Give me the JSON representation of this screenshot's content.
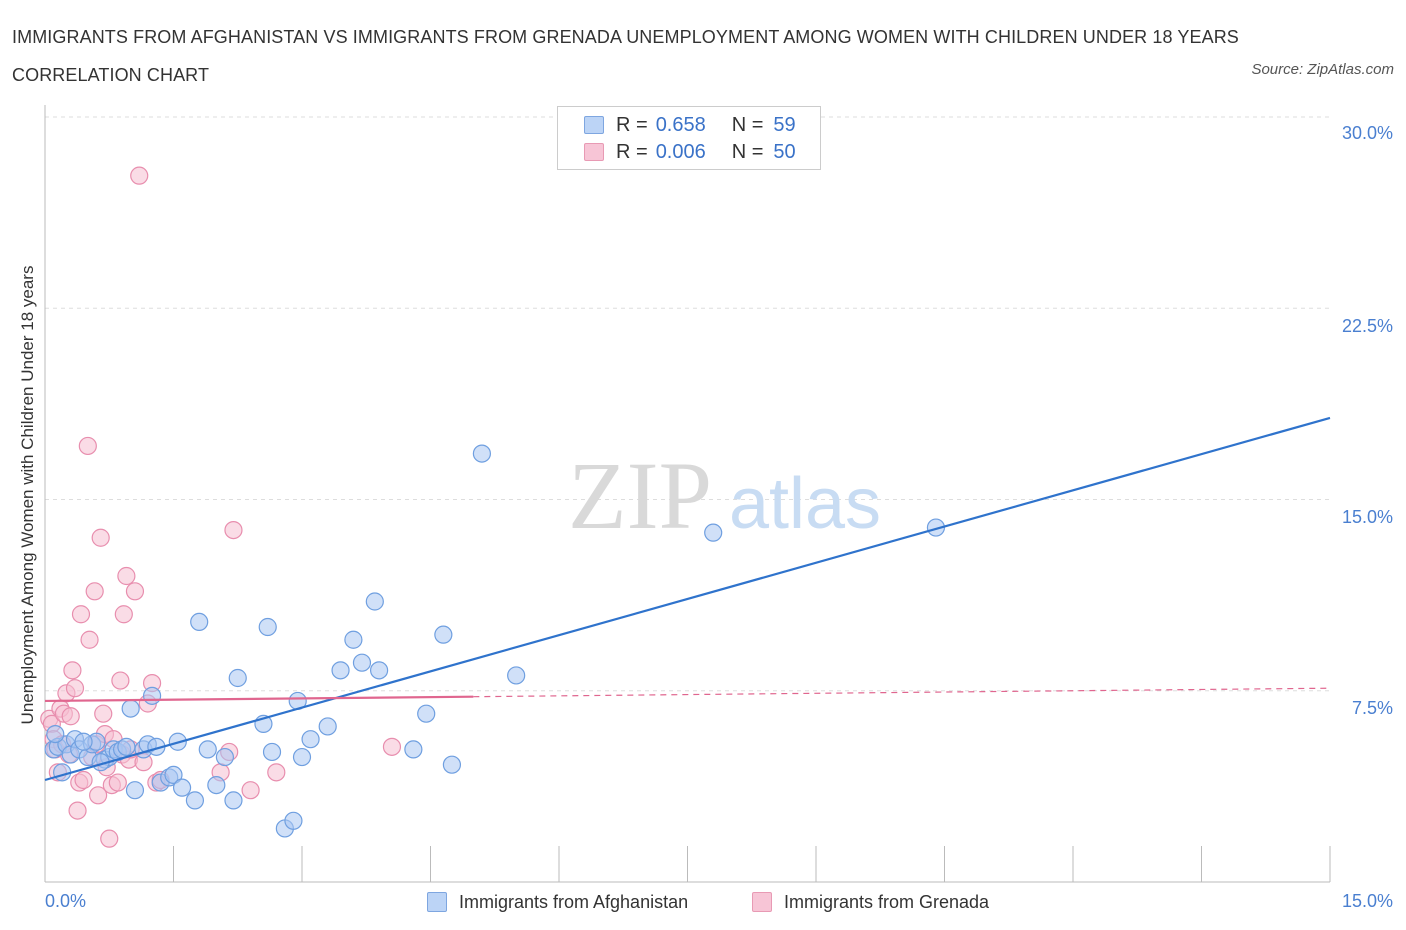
{
  "title": "IMMIGRANTS FROM AFGHANISTAN VS IMMIGRANTS FROM GRENADA UNEMPLOYMENT AMONG WOMEN WITH CHILDREN UNDER 18 YEARS CORRELATION CHART",
  "source": "Source: ZipAtlas.com",
  "watermark": {
    "zip": "ZIP",
    "atlas": "atlas"
  },
  "legend": {
    "r_label": "R =",
    "n_label": "N =",
    "series": [
      {
        "r": "0.658",
        "n": "59"
      },
      {
        "r": "0.006",
        "n": "50"
      }
    ]
  },
  "colors": {
    "afghanistan_fill": "#a9c7f2",
    "afghanistan_stroke": "#6f9fe0",
    "afghanistan_line": "#2f73cc",
    "grenada_fill": "#f6bfd2",
    "grenada_stroke": "#e88eae",
    "grenada_line": "#e0668f",
    "tick_label": "#4a7fd0",
    "grid": "#dddddd"
  },
  "chart_data": {
    "type": "scatter",
    "title": "IMMIGRANTS FROM AFGHANISTAN VS IMMIGRANTS FROM GRENADA UNEMPLOYMENT AMONG WOMEN WITH CHILDREN UNDER 18 YEARS CORRELATION CHART",
    "xlabel": "",
    "ylabel": "Unemployment Among Women with Children Under 18 years",
    "xlim": [
      0,
      15
    ],
    "ylim": [
      0,
      30
    ],
    "x_tick_labels": [
      "0.0%",
      "15.0%"
    ],
    "y_ticks": [
      7.5,
      15.0,
      22.5,
      30.0
    ],
    "y_tick_labels": [
      "7.5%",
      "15.0%",
      "22.5%",
      "30.0%"
    ],
    "grid": true,
    "legend_position": "top-center",
    "series": [
      {
        "name": "Immigrants from Afghanistan",
        "r": 0.658,
        "n": 59,
        "trend": {
          "x": [
            0,
            15
          ],
          "y": [
            4.0,
            18.2
          ]
        },
        "points": [
          [
            0.1,
            5.2
          ],
          [
            0.15,
            5.3
          ],
          [
            0.2,
            4.3
          ],
          [
            0.25,
            5.4
          ],
          [
            0.3,
            5.0
          ],
          [
            0.35,
            5.6
          ],
          [
            0.4,
            5.2
          ],
          [
            0.5,
            4.9
          ],
          [
            0.55,
            5.4
          ],
          [
            0.6,
            5.5
          ],
          [
            0.7,
            4.8
          ],
          [
            0.75,
            4.9
          ],
          [
            0.8,
            5.2
          ],
          [
            0.85,
            5.1
          ],
          [
            0.9,
            5.2
          ],
          [
            0.95,
            5.3
          ],
          [
            1.0,
            6.8
          ],
          [
            1.05,
            3.6
          ],
          [
            1.15,
            5.2
          ],
          [
            1.2,
            5.4
          ],
          [
            1.25,
            7.3
          ],
          [
            1.3,
            5.3
          ],
          [
            1.35,
            3.9
          ],
          [
            1.45,
            4.1
          ],
          [
            1.5,
            4.2
          ],
          [
            1.55,
            5.5
          ],
          [
            1.6,
            3.7
          ],
          [
            1.75,
            3.2
          ],
          [
            1.8,
            10.2
          ],
          [
            1.9,
            5.2
          ],
          [
            2.0,
            3.8
          ],
          [
            2.1,
            4.9
          ],
          [
            2.2,
            3.2
          ],
          [
            2.25,
            8.0
          ],
          [
            2.55,
            6.2
          ],
          [
            2.6,
            10.0
          ],
          [
            2.65,
            5.1
          ],
          [
            2.8,
            2.1
          ],
          [
            2.9,
            2.4
          ],
          [
            2.95,
            7.1
          ],
          [
            3.0,
            4.9
          ],
          [
            3.1,
            5.6
          ],
          [
            3.3,
            6.1
          ],
          [
            3.45,
            8.3
          ],
          [
            3.6,
            9.5
          ],
          [
            3.7,
            8.6
          ],
          [
            3.85,
            11.0
          ],
          [
            3.9,
            8.3
          ],
          [
            4.3,
            5.2
          ],
          [
            4.45,
            6.6
          ],
          [
            4.65,
            9.7
          ],
          [
            4.75,
            4.6
          ],
          [
            5.1,
            16.8
          ],
          [
            5.5,
            8.1
          ],
          [
            7.8,
            13.7
          ],
          [
            10.4,
            13.9
          ],
          [
            0.12,
            5.8
          ],
          [
            0.45,
            5.5
          ],
          [
            0.65,
            4.7
          ]
        ]
      },
      {
        "name": "Immigrants from Grenada",
        "r": 0.006,
        "n": 50,
        "trend": {
          "x": [
            0,
            15
          ],
          "y": [
            7.1,
            7.6
          ],
          "solid_until_x": 5.0
        },
        "points": [
          [
            0.05,
            6.4
          ],
          [
            0.08,
            6.2
          ],
          [
            0.1,
            5.6
          ],
          [
            0.12,
            5.2
          ],
          [
            0.15,
            4.3
          ],
          [
            0.18,
            6.8
          ],
          [
            0.2,
            5.4
          ],
          [
            0.22,
            6.6
          ],
          [
            0.25,
            7.4
          ],
          [
            0.28,
            5.0
          ],
          [
            0.3,
            6.5
          ],
          [
            0.32,
            8.3
          ],
          [
            0.35,
            7.6
          ],
          [
            0.38,
            2.8
          ],
          [
            0.4,
            3.9
          ],
          [
            0.42,
            10.5
          ],
          [
            0.45,
            4.0
          ],
          [
            0.5,
            17.1
          ],
          [
            0.52,
            9.5
          ],
          [
            0.55,
            4.9
          ],
          [
            0.58,
            11.4
          ],
          [
            0.6,
            5.4
          ],
          [
            0.62,
            3.4
          ],
          [
            0.65,
            13.5
          ],
          [
            0.68,
            6.6
          ],
          [
            0.7,
            5.8
          ],
          [
            0.72,
            4.5
          ],
          [
            0.75,
            1.7
          ],
          [
            0.78,
            3.8
          ],
          [
            0.8,
            5.6
          ],
          [
            0.85,
            3.9
          ],
          [
            0.88,
            7.9
          ],
          [
            0.9,
            5.0
          ],
          [
            0.92,
            10.5
          ],
          [
            0.95,
            12.0
          ],
          [
            0.98,
            4.8
          ],
          [
            1.0,
            5.2
          ],
          [
            1.05,
            11.4
          ],
          [
            1.1,
            27.7
          ],
          [
            1.15,
            4.7
          ],
          [
            1.2,
            7.0
          ],
          [
            1.25,
            7.8
          ],
          [
            1.3,
            3.9
          ],
          [
            1.35,
            4.0
          ],
          [
            2.05,
            4.3
          ],
          [
            2.15,
            5.1
          ],
          [
            2.2,
            13.8
          ],
          [
            2.4,
            3.6
          ],
          [
            2.7,
            4.3
          ],
          [
            4.05,
            5.3
          ]
        ]
      }
    ]
  }
}
